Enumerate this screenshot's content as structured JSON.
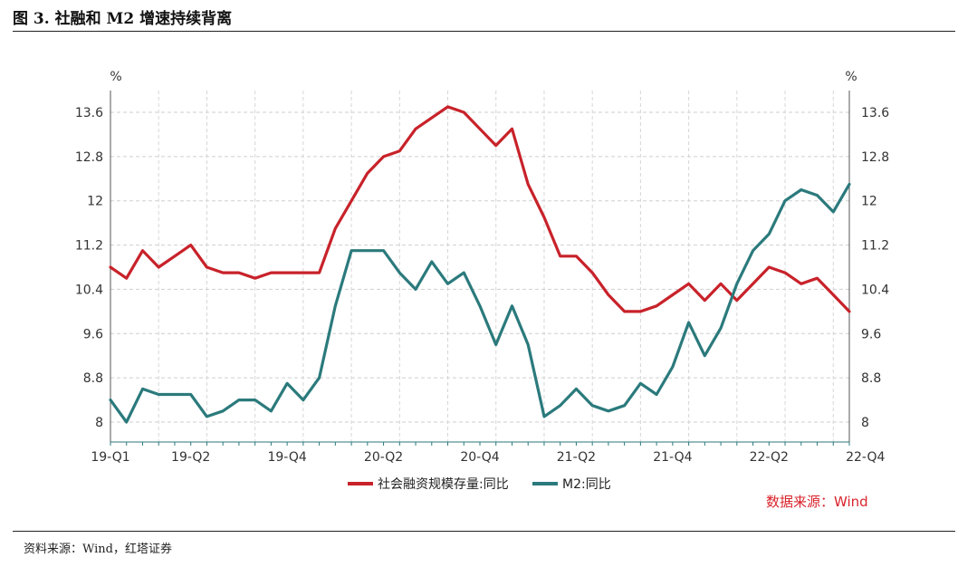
{
  "figure": {
    "title": "图 3. 社融和 M2 增速持续背离",
    "source_note": "资料来源：Wind，红塔证券",
    "data_source": "数据来源：Wind"
  },
  "chart_data": {
    "type": "line",
    "unit_left": "%",
    "unit_right": "%",
    "ylim": [
      8,
      13.6
    ],
    "yticks": [
      8,
      8.8,
      9.6,
      10.4,
      11.2,
      12,
      12.8,
      13.6
    ],
    "ytick_labels": [
      "8",
      "8.8",
      "9.6",
      "10.4",
      "11.2",
      "12",
      "12.8",
      "13.6"
    ],
    "xtick_labels": [
      "19-Q1",
      "19-Q2",
      "19-Q4",
      "20-Q2",
      "20-Q4",
      "21-Q2",
      "21-Q4",
      "22-Q2",
      "22-Q4"
    ],
    "xtick_index": [
      0,
      5,
      11,
      17,
      23,
      29,
      35,
      41,
      47
    ],
    "grid": true,
    "legend_position": "bottom",
    "colors": {
      "tsf": "#c8222a",
      "m2": "#2b7a7c"
    },
    "series": [
      {
        "name": "社会融资规模存量:同比",
        "color": "#c8222a",
        "values": [
          10.8,
          10.6,
          11.1,
          10.8,
          11.0,
          11.2,
          10.8,
          10.7,
          10.7,
          10.6,
          10.7,
          10.7,
          10.7,
          10.7,
          11.5,
          12.0,
          12.5,
          12.8,
          12.9,
          13.3,
          13.5,
          13.7,
          13.6,
          13.3,
          13.0,
          13.3,
          12.3,
          11.7,
          11.0,
          11.0,
          10.7,
          10.3,
          10.0,
          10.0,
          10.1,
          10.3,
          10.5,
          10.2,
          10.5,
          10.2,
          10.5,
          10.8,
          10.7,
          10.5,
          10.6,
          10.3,
          10.0
        ]
      },
      {
        "name": "M2:同比",
        "color": "#2b7a7c",
        "values": [
          8.4,
          8.0,
          8.6,
          8.5,
          8.5,
          8.5,
          8.1,
          8.2,
          8.4,
          8.4,
          8.2,
          8.7,
          8.4,
          8.8,
          10.1,
          11.1,
          11.1,
          11.1,
          10.7,
          10.4,
          10.9,
          10.5,
          10.7,
          10.1,
          9.4,
          10.1,
          9.4,
          8.1,
          8.3,
          8.6,
          8.3,
          8.2,
          8.3,
          8.7,
          8.5,
          9.0,
          9.8,
          9.2,
          9.7,
          10.5,
          11.1,
          11.4,
          12.0,
          12.2,
          12.1,
          11.8,
          12.3
        ]
      }
    ]
  }
}
